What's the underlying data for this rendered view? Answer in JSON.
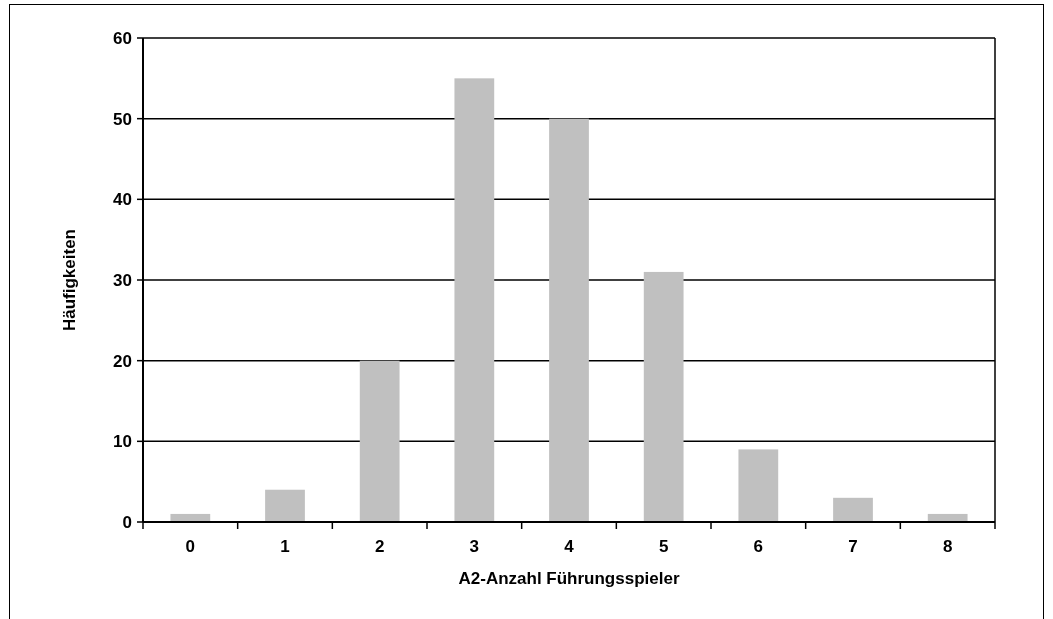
{
  "chart_data": {
    "type": "bar",
    "xlabel": "A2-Anzahl Führungsspieler",
    "ylabel": "Häufigkeiten",
    "categories": [
      "0",
      "1",
      "2",
      "3",
      "4",
      "5",
      "6",
      "7",
      "8"
    ],
    "values": [
      1,
      4,
      20,
      55,
      50,
      31,
      9,
      3,
      1
    ],
    "color": "#c0c0c0",
    "ylim": [
      0,
      60
    ],
    "yticks": [
      0,
      10,
      20,
      30,
      40,
      50,
      60
    ],
    "grid": "y"
  }
}
